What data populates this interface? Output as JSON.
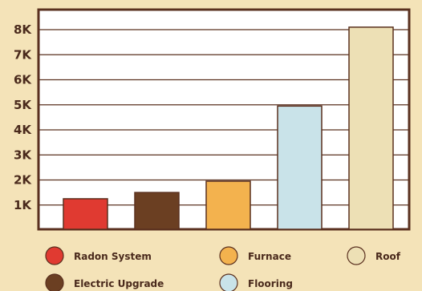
{
  "chart_data": {
    "type": "bar",
    "categories": [
      "Radon System",
      "Electric Upgrade",
      "Furnace",
      "Flooring",
      "Roof"
    ],
    "values": [
      1250,
      1500,
      1950,
      4950,
      8100
    ],
    "colors": [
      "#e03a31",
      "#6b3f22",
      "#f3b24e",
      "#c9e3e9",
      "#ede0b5"
    ],
    "y_ticks": [
      {
        "value": 1000,
        "label": "1K"
      },
      {
        "value": 2000,
        "label": "2K"
      },
      {
        "value": 3000,
        "label": "3K"
      },
      {
        "value": 4000,
        "label": "4K"
      },
      {
        "value": 5000,
        "label": "5K"
      },
      {
        "value": 6000,
        "label": "6K"
      },
      {
        "value": 7000,
        "label": "7K"
      },
      {
        "value": 8000,
        "label": "8K"
      }
    ],
    "ylim": [
      0,
      8000
    ],
    "grid": true,
    "legend_placement": "bottom",
    "title": "",
    "xlabel": "",
    "ylabel": "",
    "legend": [
      {
        "label": "Radon System",
        "color": "#e03a31"
      },
      {
        "label": "Electric Upgrade",
        "color": "#6b3f22"
      },
      {
        "label": "Furnace",
        "color": "#f3b24e"
      },
      {
        "label": "Flooring",
        "color": "#c9e3e9"
      },
      {
        "label": "Roof",
        "color": "#ede0b5"
      }
    ],
    "style": {
      "background": "#f4e3b8",
      "plot_background": "#ffffff",
      "frame_color": "#5a301f",
      "grid_color": "#5a301f",
      "bar_outline": "#5a301f",
      "text_color": "#4a2a1c"
    }
  }
}
